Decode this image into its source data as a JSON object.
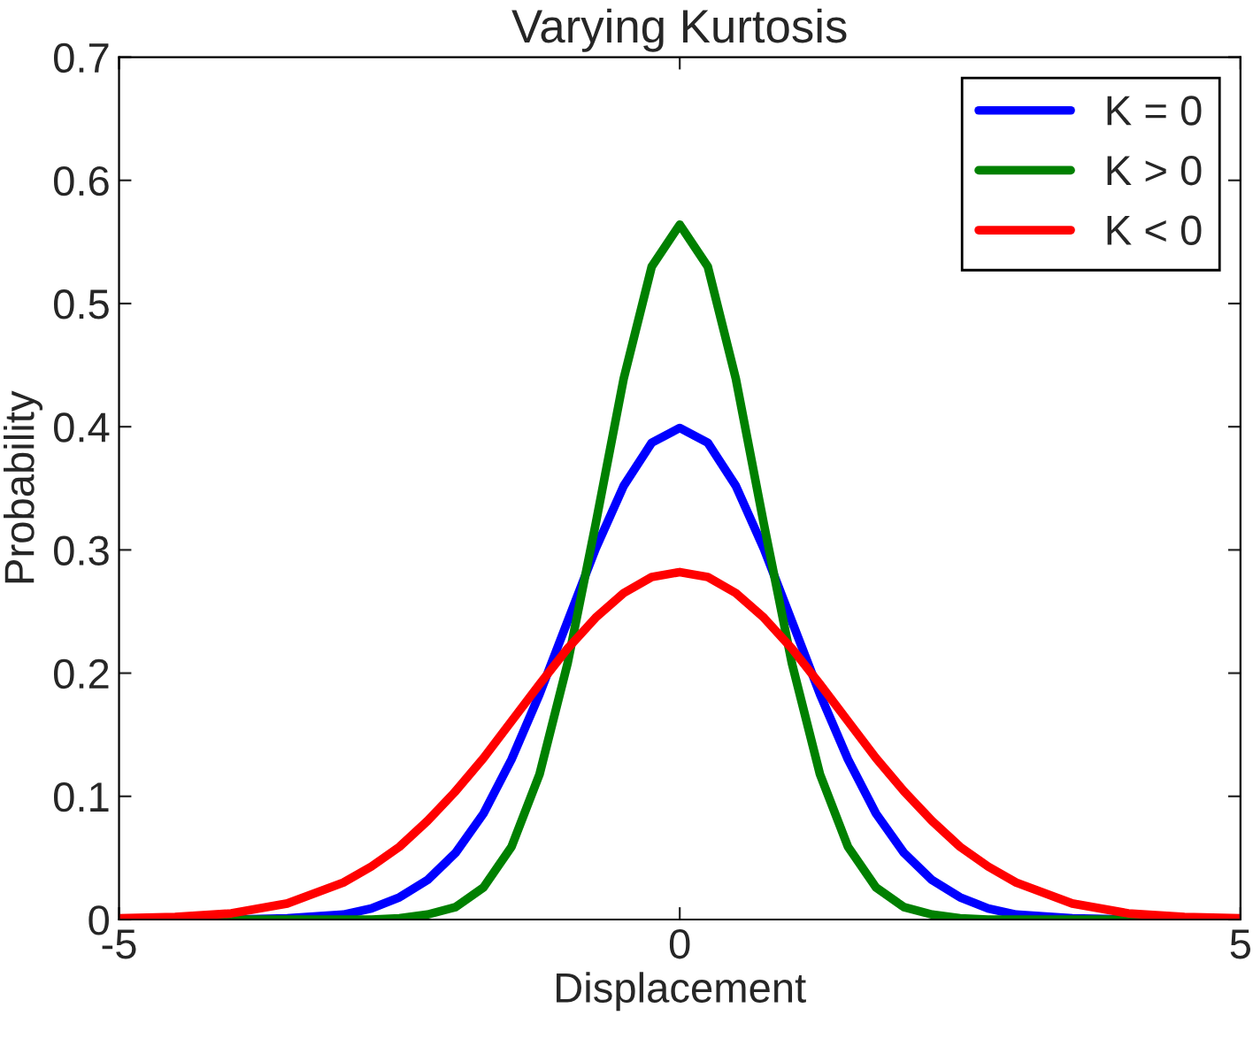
{
  "chart_data": {
    "type": "line",
    "title": "Varying Kurtosis",
    "xlabel": "Displacement",
    "ylabel": "Probability",
    "x": [
      -5,
      -4.5,
      -4,
      -3.5,
      -3,
      -2.75,
      -2.5,
      -2.25,
      -2,
      -1.75,
      -1.5,
      -1.25,
      -1,
      -0.75,
      -0.5,
      -0.25,
      0,
      0.25,
      0.5,
      0.75,
      1,
      1.25,
      1.5,
      1.75,
      2,
      2.25,
      2.5,
      2.75,
      3,
      3.5,
      4,
      4.5,
      5
    ],
    "series": [
      {
        "name": "K = 0",
        "color": "#0000ff",
        "values": [
          0,
          0,
          0,
          0.001,
          0.004,
          0.009,
          0.018,
          0.032,
          0.054,
          0.086,
          0.13,
          0.183,
          0.242,
          0.301,
          0.352,
          0.387,
          0.399,
          0.387,
          0.352,
          0.301,
          0.242,
          0.183,
          0.13,
          0.086,
          0.054,
          0.032,
          0.018,
          0.009,
          0.004,
          0.001,
          0,
          0,
          0
        ]
      },
      {
        "name": "K > 0",
        "color": "#008000",
        "values": [
          0,
          0,
          0,
          0,
          0,
          0,
          0.001,
          0.004,
          0.01,
          0.026,
          0.059,
          0.118,
          0.208,
          0.321,
          0.439,
          0.53,
          0.564,
          0.53,
          0.439,
          0.321,
          0.208,
          0.118,
          0.059,
          0.026,
          0.01,
          0.004,
          0.001,
          0,
          0,
          0,
          0,
          0,
          0
        ]
      },
      {
        "name": "K < 0",
        "color": "#ff0000",
        "values": [
          0.001,
          0.002,
          0.005,
          0.013,
          0.03,
          0.043,
          0.059,
          0.08,
          0.104,
          0.131,
          0.161,
          0.191,
          0.22,
          0.245,
          0.265,
          0.278,
          0.282,
          0.278,
          0.265,
          0.245,
          0.22,
          0.191,
          0.161,
          0.131,
          0.104,
          0.08,
          0.059,
          0.043,
          0.03,
          0.013,
          0.005,
          0.002,
          0.001
        ]
      }
    ],
    "xlim": [
      -5,
      5
    ],
    "xticks": [
      -5,
      0,
      5
    ],
    "ylim": [
      0,
      0.7
    ],
    "yticks": [
      0,
      0.1,
      0.2,
      0.3,
      0.4,
      0.5,
      0.6,
      0.7
    ],
    "grid": false,
    "legend": "top right",
    "line_style": "solid",
    "marker": "none"
  }
}
